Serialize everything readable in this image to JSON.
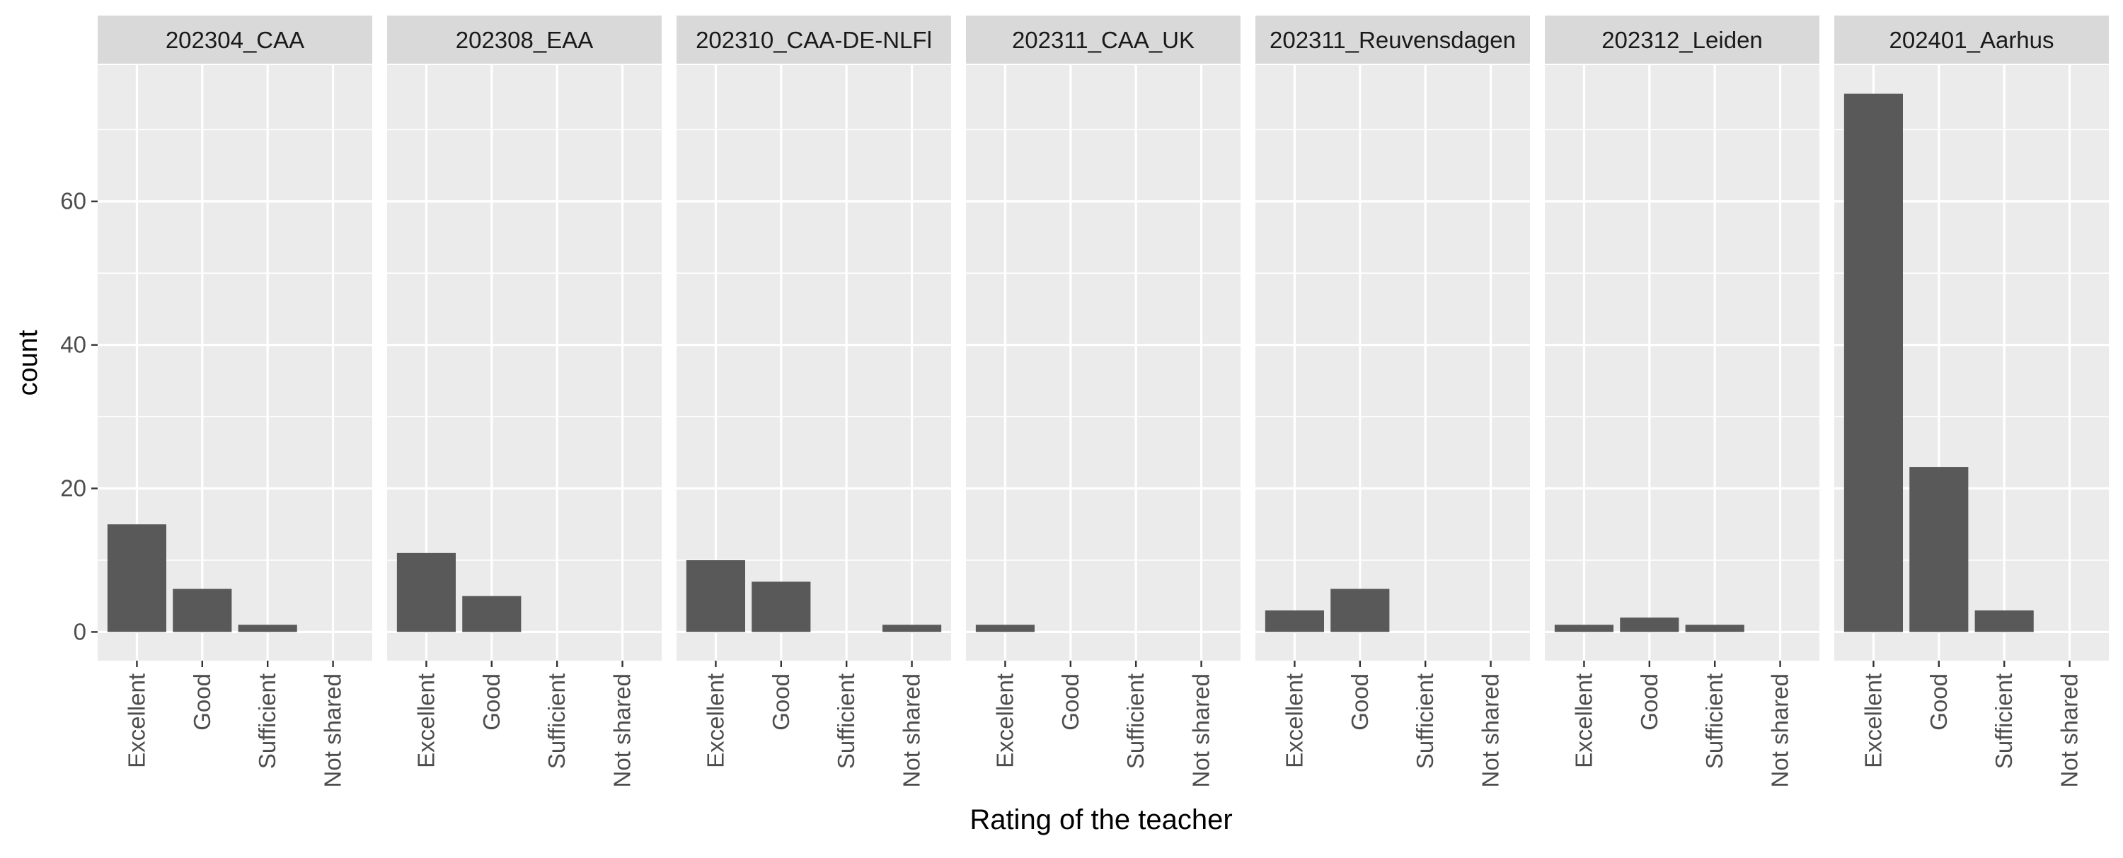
{
  "chart_data": {
    "type": "bar",
    "xlabel": "Rating of the teacher",
    "ylabel": "count",
    "ylim": [
      -4,
      79
    ],
    "yticks": [
      0,
      20,
      40,
      60
    ],
    "categories": [
      "Excellent",
      "Good",
      "Sufficient",
      "Not shared"
    ],
    "panels": [
      {
        "name": "202304_CAA",
        "values": [
          15,
          6,
          1,
          0
        ]
      },
      {
        "name": "202308_EAA",
        "values": [
          11,
          5,
          0,
          0
        ]
      },
      {
        "name": "202310_CAA-DE-NLFl",
        "values": [
          10,
          7,
          0,
          1
        ]
      },
      {
        "name": "202311_CAA_UK",
        "values": [
          1,
          0,
          0,
          0
        ]
      },
      {
        "name": "202311_Reuvensdagen",
        "values": [
          3,
          6,
          0,
          0
        ]
      },
      {
        "name": "202312_Leiden",
        "values": [
          1,
          2,
          1,
          0
        ]
      },
      {
        "name": "202401_Aarhus",
        "values": [
          75,
          23,
          3,
          0
        ]
      }
    ],
    "grid": true,
    "legend": "none",
    "colors": {
      "bar": "#595959",
      "panel": "#ebebeb",
      "strip": "#d9d9d9",
      "grid": "#ffffff",
      "text": "#1a1a1a",
      "tick_text": "#4d4d4d"
    }
  }
}
